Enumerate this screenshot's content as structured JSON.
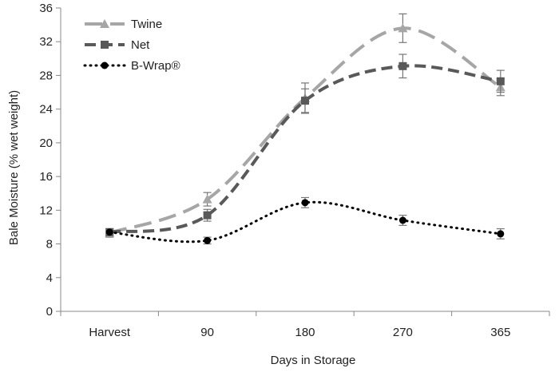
{
  "chart_data": {
    "type": "line",
    "title": "",
    "xlabel": "Days in Storage",
    "ylabel": "Bale Moisture (% wet weight)",
    "categories": [
      "Harvest",
      "90",
      "180",
      "270",
      "365"
    ],
    "ylim": [
      0,
      36
    ],
    "yticks": [
      0,
      4,
      8,
      12,
      16,
      20,
      24,
      28,
      32,
      36
    ],
    "grid": false,
    "legend": "top-left",
    "series": [
      {
        "name": "Twine",
        "values": [
          9.3,
          13.3,
          25.3,
          33.6,
          26.6
        ],
        "errors": [
          0.5,
          0.8,
          1.8,
          1.7,
          1.0
        ],
        "color": "#a6a6a6",
        "marker": "triangle",
        "dash": "long-dash"
      },
      {
        "name": "Net",
        "values": [
          9.4,
          11.4,
          25.0,
          29.1,
          27.3
        ],
        "errors": [
          0.4,
          0.7,
          1.4,
          1.4,
          1.3
        ],
        "color": "#595959",
        "marker": "square",
        "dash": "dash"
      },
      {
        "name": "B-Wrap®",
        "values": [
          9.4,
          8.4,
          12.9,
          10.8,
          9.2
        ],
        "errors": [
          0.3,
          0.4,
          0.6,
          0.6,
          0.6
        ],
        "color": "#000000",
        "marker": "circle",
        "dash": "dot"
      }
    ]
  }
}
